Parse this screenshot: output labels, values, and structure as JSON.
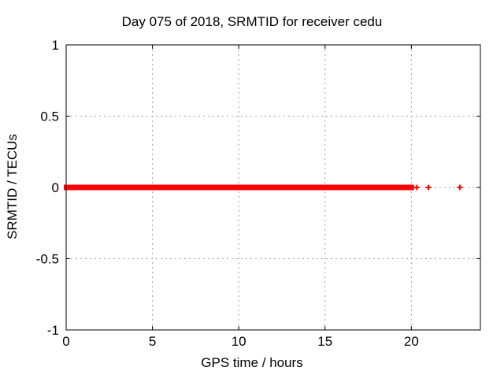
{
  "chart_data": {
    "type": "scatter",
    "title": "Day 075 of 2018, SRMTID for receiver cedu",
    "xlabel": "GPS time / hours",
    "ylabel": "SRMTID / TECUs",
    "xlim": [
      0,
      24
    ],
    "ylim": [
      -1,
      1
    ],
    "xticks": [
      0,
      5,
      10,
      15,
      20
    ],
    "xtick_labels": [
      "0",
      "5",
      "10",
      "15",
      "20"
    ],
    "yticks": [
      -1,
      -0.5,
      0,
      0.5,
      1
    ],
    "ytick_labels": [
      "-1",
      "-0.5",
      "0",
      "0.5",
      "1"
    ],
    "grid": true,
    "legend": "none",
    "series": [
      {
        "name": "SRMTID",
        "marker": "plus",
        "color": "#ff0000",
        "y_value": 0,
        "dense_x_intervals_hours": [
          [
            0.0,
            13.82
          ],
          [
            13.92,
            14.24
          ],
          [
            14.37,
            20.02
          ]
        ],
        "isolated_x_points_hours": [
          20.32,
          20.99,
          22.81
        ]
      }
    ]
  },
  "colors": {
    "background": "#ffffff",
    "axis": "#000000",
    "grid": "#a0a0a0",
    "text": "#000000",
    "marker": "#ff0000"
  }
}
